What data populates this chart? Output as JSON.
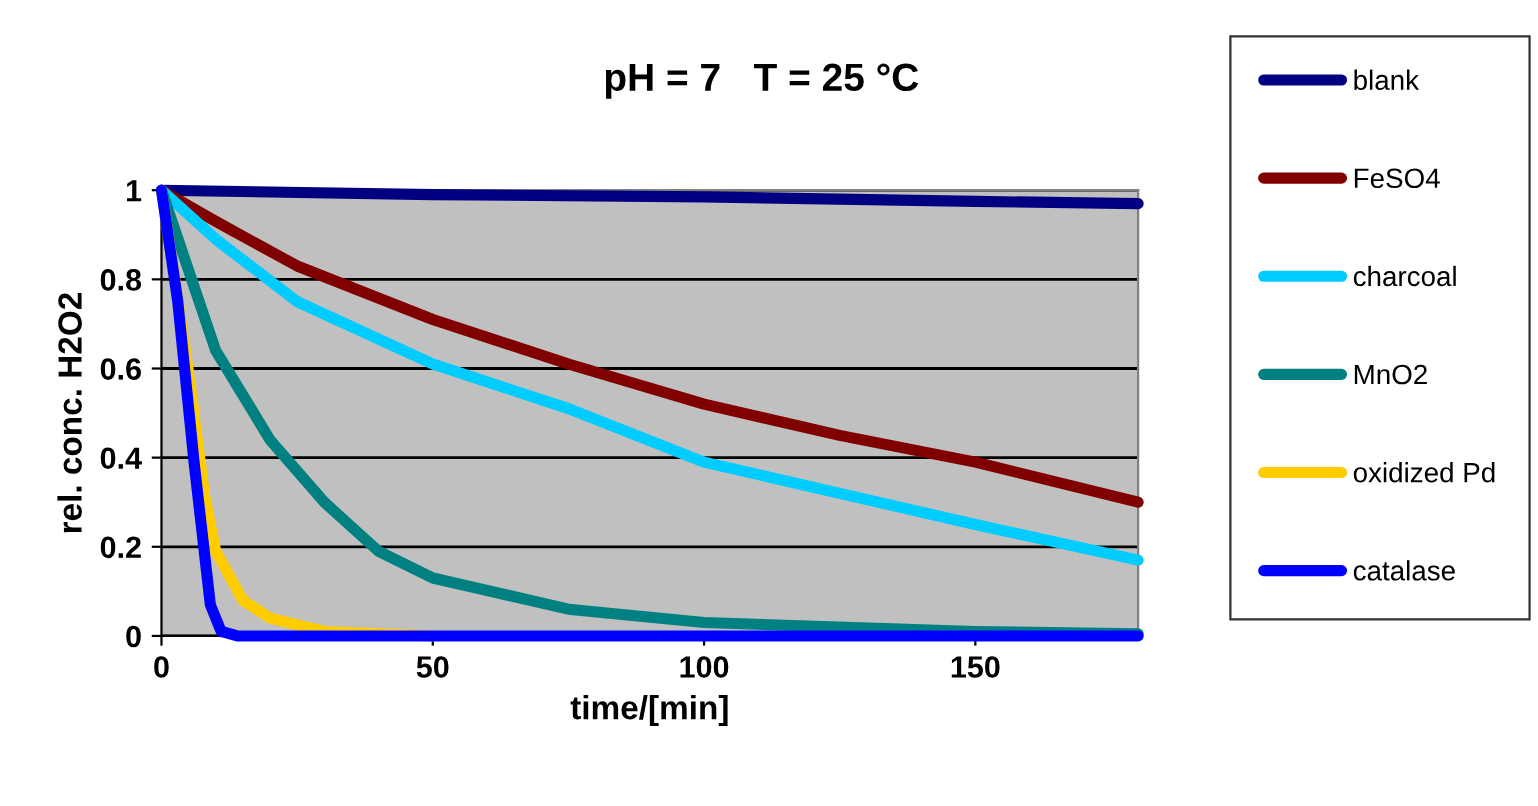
{
  "chart_data": {
    "type": "line",
    "title": "pH = 7   T = 25 °C",
    "xlabel": "time/[min]",
    "ylabel": "rel. conc. H2O2",
    "xlim": [
      0,
      180
    ],
    "xticks": [
      0,
      50,
      100,
      150
    ],
    "ylim": [
      0,
      1
    ],
    "yticks": [
      0,
      0.2,
      0.4,
      0.6,
      0.8,
      1
    ],
    "grid": "y",
    "legend": "right",
    "marker": "none",
    "line_style": "solid",
    "series": [
      {
        "name": "blank",
        "color": "#000080",
        "x": [
          0,
          50,
          100,
          150,
          180
        ],
        "values": [
          1,
          0.99,
          0.985,
          0.975,
          0.97
        ]
      },
      {
        "name": "FeSO4",
        "color": "#800000",
        "x": [
          0,
          10,
          25,
          50,
          75,
          100,
          125,
          150,
          180
        ],
        "values": [
          1,
          0.93,
          0.83,
          0.71,
          0.61,
          0.52,
          0.45,
          0.39,
          0.3
        ]
      },
      {
        "name": "charcoal",
        "color": "#00ccff",
        "x": [
          0,
          10,
          25,
          50,
          75,
          100,
          125,
          150,
          180
        ],
        "values": [
          1,
          0.89,
          0.75,
          0.61,
          0.51,
          0.39,
          0.32,
          0.25,
          0.17
        ]
      },
      {
        "name": "MnO2",
        "color": "#008080",
        "x": [
          0,
          10,
          20,
          30,
          40,
          50,
          75,
          100,
          150,
          180
        ],
        "values": [
          1,
          0.64,
          0.44,
          0.3,
          0.19,
          0.13,
          0.06,
          0.03,
          0.01,
          0.005
        ]
      },
      {
        "name": "oxidized Pd",
        "color": "#ffcc00",
        "x": [
          0,
          5,
          8,
          10,
          15,
          20,
          30,
          50
        ],
        "values": [
          1,
          0.59,
          0.31,
          0.19,
          0.08,
          0.04,
          0.01,
          0
        ]
      },
      {
        "name": "catalase",
        "color": "#0000ff",
        "x": [
          0,
          3,
          6,
          9,
          11,
          14,
          180
        ],
        "values": [
          1,
          0.75,
          0.39,
          0.07,
          0.01,
          0,
          0
        ]
      }
    ]
  }
}
